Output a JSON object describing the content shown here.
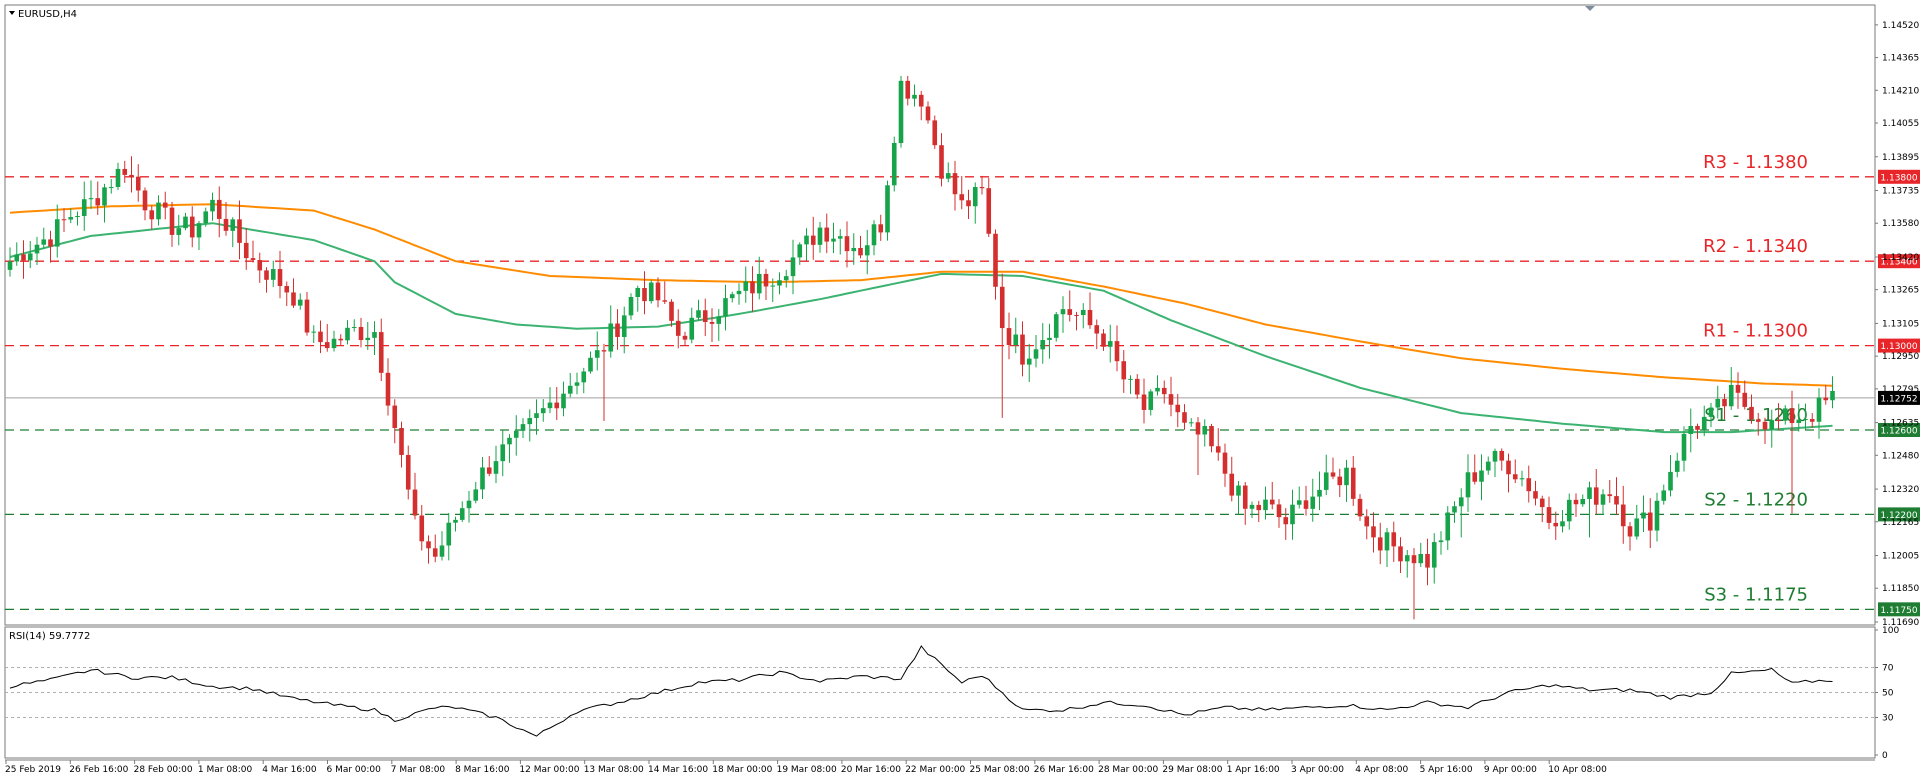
{
  "main_panel": {
    "title": "EURUSD,H4",
    "price_ticks": [
      "1.14520",
      "1.14365",
      "1.14210",
      "1.14055",
      "1.13895",
      "1.13735",
      "1.13580",
      "1.13420",
      "1.13265",
      "1.13105",
      "1.12950",
      "1.12795",
      "1.12635",
      "1.12480",
      "1.12320",
      "1.12165",
      "1.12005",
      "1.11850",
      "1.11690"
    ],
    "current_price": "1.12752",
    "current_price_value": 1.12752
  },
  "rsi_panel": {
    "title": "RSI(14) 59.7772",
    "ticks": [
      "100",
      "70",
      "50",
      "30",
      "0"
    ]
  },
  "time_labels": [
    "25 Feb 2019",
    "26 Feb 16:00",
    "28 Feb 00:00",
    "1 Mar 08:00",
    "4 Mar 16:00",
    "6 Mar 00:00",
    "7 Mar 08:00",
    "8 Mar 16:00",
    "12 Mar 00:00",
    "13 Mar 08:00",
    "14 Mar 16:00",
    "18 Mar 00:00",
    "19 Mar 08:00",
    "20 Mar 16:00",
    "22 Mar 00:00",
    "25 Mar 08:00",
    "26 Mar 16:00",
    "28 Mar 00:00",
    "29 Mar 08:00",
    "1 Apr 16:00",
    "3 Apr 00:00",
    "4 Apr 08:00",
    "5 Apr 16:00",
    "9 Apr 00:00",
    "10 Apr 08:00"
  ],
  "levels": [
    {
      "name": "R3",
      "label": "R3 - 1.1380",
      "tag": "1.13800",
      "value": 1.138,
      "color": "#e8262a"
    },
    {
      "name": "R2",
      "label": "R2 - 1.1340",
      "tag": "1.13400",
      "value": 1.134,
      "color": "#e8262a"
    },
    {
      "name": "R1",
      "label": "R1 - 1.1300",
      "tag": "1.13000",
      "value": 1.13,
      "color": "#e8262a"
    },
    {
      "name": "S1",
      "label": "S1 - 1.1260",
      "tag": "1.12600",
      "value": 1.126,
      "color": "#1e7d32"
    },
    {
      "name": "S2",
      "label": "S2 - 1.1220",
      "tag": "1.12200",
      "value": 1.122,
      "color": "#1e7d32"
    },
    {
      "name": "S3",
      "label": "S3 - 1.1175",
      "tag": "1.11750",
      "value": 1.1175,
      "color": "#1e7d32"
    }
  ],
  "colors": {
    "bull_candle": "#16a34a",
    "bear_candle": "#d32f2f",
    "ma_fast": "#3cb371",
    "ma_slow": "#ff8c00",
    "rsi_line": "#000000"
  },
  "chart_data": {
    "type": "candlestick",
    "symbol": "EURUSD",
    "timeframe": "H4",
    "ylim": [
      1.1169,
      1.146
    ],
    "rsi_ylim": [
      0,
      100
    ],
    "rsi_value": 59.7772,
    "rsi_levels": [
      70,
      50,
      30
    ],
    "anchors": {
      "close": [
        [
          0,
          1.134
        ],
        [
          2,
          1.1345
        ],
        [
          6,
          1.1352
        ],
        [
          9,
          1.1362
        ],
        [
          12,
          1.1368
        ],
        [
          14,
          1.1375
        ],
        [
          17,
          1.1385
        ],
        [
          20,
          1.1368
        ],
        [
          24,
          1.1357
        ],
        [
          27,
          1.1355
        ],
        [
          30,
          1.1367
        ],
        [
          33,
          1.1354
        ],
        [
          36,
          1.134
        ],
        [
          39,
          1.1333
        ],
        [
          42,
          1.1324
        ],
        [
          45,
          1.1302
        ],
        [
          48,
          1.1302
        ],
        [
          51,
          1.1307
        ],
        [
          54,
          1.1307
        ],
        [
          57,
          1.1262
        ],
        [
          60,
          1.1214
        ],
        [
          63,
          1.12
        ],
        [
          66,
          1.1218
        ],
        [
          69,
          1.1235
        ],
        [
          72,
          1.1248
        ],
        [
          75,
          1.1254
        ],
        [
          78,
          1.1265
        ],
        [
          81,
          1.1276
        ],
        [
          84,
          1.1286
        ],
        [
          87,
          1.1295
        ],
        [
          90,
          1.131
        ],
        [
          93,
          1.1328
        ],
        [
          96,
          1.1322
        ],
        [
          99,
          1.1305
        ],
        [
          102,
          1.1312
        ],
        [
          105,
          1.1318
        ],
        [
          108,
          1.1324
        ],
        [
          111,
          1.133
        ],
        [
          114,
          1.1336
        ],
        [
          117,
          1.1344
        ],
        [
          120,
          1.1356
        ],
        [
          123,
          1.1352
        ],
        [
          126,
          1.1346
        ],
        [
          129,
          1.1358
        ],
        [
          132,
          1.1424
        ],
        [
          135,
          1.1418
        ],
        [
          138,
          1.1385
        ],
        [
          141,
          1.1366
        ],
        [
          144,
          1.1372
        ],
        [
          147,
          1.131
        ],
        [
          150,
          1.1296
        ],
        [
          153,
          1.1305
        ],
        [
          156,
          1.1318
        ],
        [
          159,
          1.1312
        ],
        [
          162,
          1.1304
        ],
        [
          165,
          1.1284
        ],
        [
          168,
          1.127
        ],
        [
          171,
          1.1278
        ],
        [
          174,
          1.126
        ],
        [
          177,
          1.1256
        ],
        [
          180,
          1.124
        ],
        [
          183,
          1.1222
        ],
        [
          186,
          1.1224
        ],
        [
          189,
          1.1216
        ],
        [
          192,
          1.1228
        ],
        [
          195,
          1.1234
        ],
        [
          198,
          1.124
        ],
        [
          201,
          1.1214
        ],
        [
          204,
          1.1206
        ],
        [
          207,
          1.1202
        ],
        [
          210,
          1.1198
        ],
        [
          213,
          1.1216
        ],
        [
          216,
          1.1236
        ],
        [
          219,
          1.1246
        ],
        [
          222,
          1.1244
        ],
        [
          225,
          1.1234
        ],
        [
          228,
          1.1218
        ],
        [
          231,
          1.1224
        ],
        [
          234,
          1.1228
        ],
        [
          237,
          1.1232
        ],
        [
          240,
          1.1214
        ],
        [
          243,
          1.1218
        ],
        [
          246,
          1.1242
        ],
        [
          249,
          1.1262
        ],
        [
          252,
          1.1266
        ],
        [
          255,
          1.1276
        ],
        [
          258,
          1.127
        ],
        [
          261,
          1.1262
        ],
        [
          264,
          1.1266
        ],
        [
          267,
          1.1268
        ],
        [
          270,
          1.1275
        ]
      ],
      "ma_fast": [
        [
          0,
          1.1342
        ],
        [
          12,
          1.1352
        ],
        [
          30,
          1.1358
        ],
        [
          45,
          1.135
        ],
        [
          54,
          1.134
        ],
        [
          57,
          1.133
        ],
        [
          66,
          1.1315
        ],
        [
          75,
          1.131
        ],
        [
          84,
          1.1308
        ],
        [
          96,
          1.1309
        ],
        [
          108,
          1.1315
        ],
        [
          120,
          1.1322
        ],
        [
          132,
          1.133
        ],
        [
          138,
          1.1334
        ],
        [
          150,
          1.1333
        ],
        [
          162,
          1.1326
        ],
        [
          172,
          1.1312
        ],
        [
          186,
          1.1295
        ],
        [
          200,
          1.128
        ],
        [
          215,
          1.1268
        ],
        [
          230,
          1.1263
        ],
        [
          245,
          1.1259
        ],
        [
          255,
          1.1259
        ],
        [
          265,
          1.1261
        ],
        [
          270,
          1.1262
        ]
      ],
      "ma_slow": [
        [
          0,
          1.1363
        ],
        [
          15,
          1.1366
        ],
        [
          30,
          1.1367
        ],
        [
          45,
          1.1364
        ],
        [
          54,
          1.1355
        ],
        [
          66,
          1.134
        ],
        [
          80,
          1.1333
        ],
        [
          96,
          1.1331
        ],
        [
          112,
          1.133
        ],
        [
          126,
          1.1331
        ],
        [
          138,
          1.1335
        ],
        [
          150,
          1.1335
        ],
        [
          162,
          1.1328
        ],
        [
          174,
          1.132
        ],
        [
          186,
          1.131
        ],
        [
          200,
          1.1302
        ],
        [
          215,
          1.1294
        ],
        [
          230,
          1.1289
        ],
        [
          245,
          1.1285
        ],
        [
          260,
          1.1282
        ],
        [
          270,
          1.1281
        ]
      ],
      "rsi": [
        [
          0,
          55
        ],
        [
          6,
          60
        ],
        [
          12,
          68
        ],
        [
          18,
          62
        ],
        [
          24,
          62
        ],
        [
          30,
          55
        ],
        [
          36,
          53
        ],
        [
          42,
          45
        ],
        [
          48,
          40
        ],
        [
          54,
          36
        ],
        [
          57,
          28
        ],
        [
          63,
          38
        ],
        [
          66,
          38
        ],
        [
          72,
          30
        ],
        [
          78,
          15
        ],
        [
          84,
          35
        ],
        [
          90,
          42
        ],
        [
          96,
          50
        ],
        [
          102,
          58
        ],
        [
          108,
          60
        ],
        [
          114,
          66
        ],
        [
          120,
          59
        ],
        [
          126,
          63
        ],
        [
          132,
          61
        ],
        [
          135,
          86
        ],
        [
          141,
          58
        ],
        [
          144,
          64
        ],
        [
          150,
          36
        ],
        [
          156,
          36
        ],
        [
          162,
          42
        ],
        [
          168,
          40
        ],
        [
          174,
          32
        ],
        [
          180,
          38
        ],
        [
          186,
          36
        ],
        [
          192,
          38
        ],
        [
          198,
          40
        ],
        [
          204,
          36
        ],
        [
          210,
          42
        ],
        [
          216,
          38
        ],
        [
          222,
          50
        ],
        [
          228,
          56
        ],
        [
          234,
          52
        ],
        [
          240,
          52
        ],
        [
          246,
          46
        ],
        [
          252,
          50
        ],
        [
          255,
          65
        ],
        [
          261,
          68
        ],
        [
          264,
          57
        ],
        [
          267,
          59
        ],
        [
          270,
          60
        ]
      ]
    },
    "spikes": [
      [
        88,
        0.003
      ],
      [
        147,
        0.004
      ],
      [
        176,
        0.0015
      ],
      [
        208,
        0.002
      ],
      [
        215,
        0.001
      ],
      [
        234,
        0.0015
      ],
      [
        264,
        0.0035
      ]
    ]
  }
}
